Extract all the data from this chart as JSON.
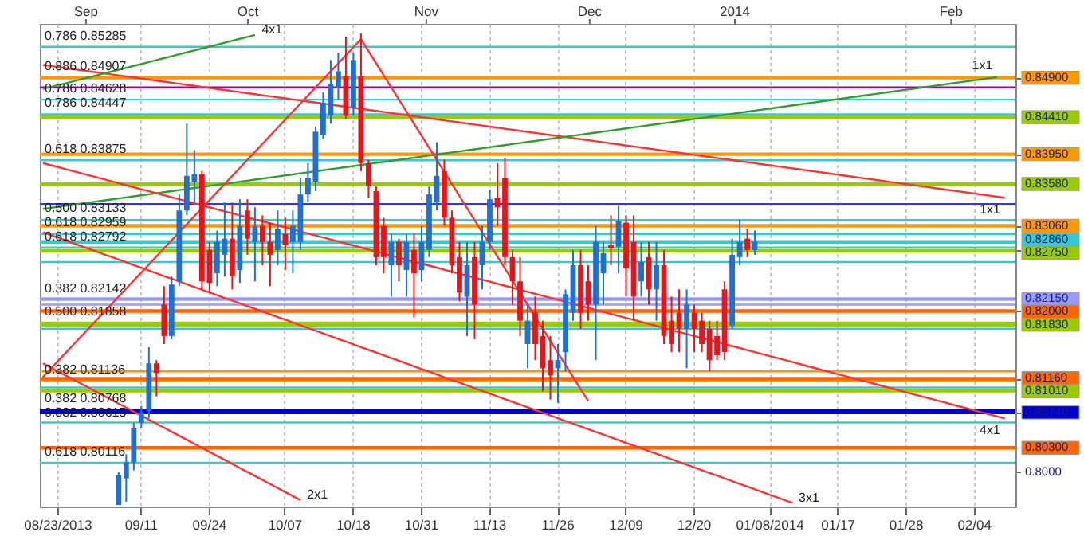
{
  "chart_data": {
    "type": "candlestick",
    "categories": [
      null,
      null,
      "08/23/2013",
      null,
      null,
      null,
      null,
      null,
      null,
      null,
      null,
      null,
      null,
      "09/11",
      null,
      null,
      null,
      null,
      null,
      null,
      null,
      null,
      "09/24",
      null,
      null,
      null,
      null,
      null,
      null,
      null,
      null,
      null,
      "10/07",
      null,
      null,
      null,
      null,
      null,
      null,
      null,
      null,
      "10/18",
      null,
      null,
      null,
      null,
      null,
      null,
      null,
      null,
      "10/31",
      null,
      null,
      null,
      null,
      null,
      null,
      null,
      null,
      "11/13",
      null,
      null,
      null,
      null,
      null,
      null,
      null,
      null,
      "11/26",
      null,
      null,
      null,
      null,
      null,
      null,
      null,
      null,
      "12/09",
      null,
      null,
      null,
      null,
      null,
      null,
      null,
      null,
      "12/20",
      null,
      null,
      null,
      null,
      null,
      null,
      null,
      null,
      null,
      "01/08/2014",
      null,
      null,
      null,
      null,
      null,
      null,
      null,
      null,
      "01/17",
      null,
      null,
      null,
      null,
      null,
      null,
      null,
      null,
      "01/28",
      null,
      null,
      null,
      null,
      null,
      null,
      null,
      null,
      "02/04",
      null,
      null,
      null,
      null,
      null
    ],
    "ohlc": [
      null,
      null,
      null,
      null,
      null,
      null,
      null,
      null,
      null,
      null,
      [
        0.7959,
        0.8,
        0.7959,
        0.7996
      ],
      [
        0.7992,
        0.8022,
        0.7963,
        0.8012
      ],
      [
        0.8012,
        0.8061,
        0.8002,
        0.8055
      ],
      [
        0.8061,
        0.8082,
        0.8055,
        0.8074
      ],
      [
        0.8076,
        0.8155,
        0.8067,
        0.8135
      ],
      [
        0.8135,
        0.8139,
        0.8094,
        0.8123
      ],
      [
        0.8208,
        0.8231,
        0.8159,
        0.8169
      ],
      [
        0.8169,
        0.8243,
        0.8165,
        0.8233
      ],
      [
        0.8237,
        0.8345,
        0.8231,
        0.8325
      ],
      [
        0.8325,
        0.8433,
        0.8319,
        0.8368
      ],
      [
        0.8361,
        0.84,
        0.8335,
        0.837
      ],
      [
        0.837,
        0.8374,
        0.8227,
        0.8237
      ],
      [
        0.8276,
        0.8286,
        0.8223,
        0.8235
      ],
      [
        0.8247,
        0.83,
        0.8231,
        0.8286
      ],
      [
        0.827,
        0.8335,
        0.8243,
        0.829
      ],
      [
        0.829,
        0.8335,
        0.8227,
        0.8243
      ],
      [
        0.8251,
        0.8339,
        0.8235,
        0.8306
      ],
      [
        0.8325,
        0.8339,
        0.827,
        0.829
      ],
      [
        0.8286,
        0.8329,
        0.8237,
        0.8306
      ],
      [
        0.8306,
        0.8319,
        0.8257,
        0.8286
      ],
      [
        0.8286,
        0.831,
        0.8231,
        0.827
      ],
      [
        0.8276,
        0.8325,
        0.8257,
        0.8302
      ],
      [
        0.8296,
        0.8316,
        0.8251,
        0.8282
      ],
      [
        0.8286,
        0.8325,
        0.8247,
        0.8306
      ],
      [
        0.8286,
        0.8365,
        0.8276,
        0.8345
      ],
      [
        0.8345,
        0.8384,
        0.8335,
        0.8365
      ],
      [
        0.8361,
        0.8429,
        0.8349,
        0.8423
      ],
      [
        0.8419,
        0.8472,
        0.8414,
        0.8459
      ],
      [
        0.8443,
        0.8512,
        0.8433,
        0.8482
      ],
      [
        0.8478,
        0.8521,
        0.8463,
        0.8498
      ],
      [
        0.8492,
        0.8541,
        0.8439,
        0.8443
      ],
      [
        0.8453,
        0.8521,
        0.8443,
        0.8512
      ],
      [
        0.8492,
        0.8545,
        0.8374,
        0.8384
      ],
      [
        0.8384,
        0.8388,
        0.8341,
        0.8355
      ],
      [
        0.8349,
        0.8355,
        0.8257,
        0.8267
      ],
      [
        0.8306,
        0.8316,
        0.8247,
        0.8267
      ],
      [
        0.8257,
        0.8296,
        0.8218,
        0.8286
      ],
      [
        0.8286,
        0.829,
        0.8237,
        0.8257
      ],
      [
        0.8251,
        0.8296,
        0.8218,
        0.8286
      ],
      [
        0.8276,
        0.8296,
        0.8192,
        0.8247
      ],
      [
        0.8251,
        0.8306,
        0.8237,
        0.8286
      ],
      [
        0.8276,
        0.8355,
        0.8267,
        0.8345
      ],
      [
        0.8335,
        0.841,
        0.8325,
        0.8368
      ],
      [
        0.8374,
        0.8388,
        0.8306,
        0.8316
      ],
      [
        0.8316,
        0.8325,
        0.8247,
        0.8257
      ],
      [
        0.8267,
        0.8286,
        0.8212,
        0.8223
      ],
      [
        0.8218,
        0.8286,
        0.8169,
        0.8257
      ],
      [
        0.8267,
        0.8286,
        0.8165,
        0.8208
      ],
      [
        0.8257,
        0.8306,
        0.8227,
        0.8286
      ],
      [
        0.8286,
        0.8351,
        0.8276,
        0.8339
      ],
      [
        0.8341,
        0.8384,
        0.8306,
        0.8329
      ],
      [
        0.8365,
        0.839,
        0.8257,
        0.8267
      ],
      [
        0.8267,
        0.8276,
        0.8208,
        0.8237
      ],
      [
        0.8237,
        0.8267,
        0.8169,
        0.8188
      ],
      [
        0.8159,
        0.8208,
        0.8129,
        0.8188
      ],
      [
        0.8198,
        0.8218,
        0.8139,
        0.8159
      ],
      [
        0.8169,
        0.8188,
        0.81,
        0.8129
      ],
      [
        0.8139,
        0.8169,
        0.809,
        0.812
      ],
      [
        0.8129,
        0.8159,
        0.8086,
        0.8139
      ],
      [
        0.8149,
        0.8227,
        0.8125,
        0.8221
      ],
      [
        0.8198,
        0.8276,
        0.8188,
        0.8257
      ],
      [
        0.8257,
        0.8276,
        0.8178,
        0.8198
      ],
      [
        0.8237,
        0.8257,
        0.8188,
        0.8208
      ],
      [
        0.8208,
        0.8306,
        0.8139,
        0.8286
      ],
      [
        0.8247,
        0.8286,
        0.8208,
        0.8272
      ],
      [
        0.8282,
        0.8319,
        0.8257,
        0.8278
      ],
      [
        0.828,
        0.8331,
        0.8247,
        0.8312
      ],
      [
        0.831,
        0.8319,
        0.8218,
        0.8253
      ],
      [
        0.8286,
        0.8319,
        0.8188,
        0.8218
      ],
      [
        0.8237,
        0.8286,
        0.8218,
        0.8261
      ],
      [
        0.8267,
        0.8286,
        0.8208,
        0.8227
      ],
      [
        0.8227,
        0.8286,
        0.8188,
        0.8257
      ],
      [
        0.8257,
        0.8276,
        0.8159,
        0.8169
      ],
      [
        0.8188,
        0.8218,
        0.8149,
        0.8159
      ],
      [
        0.8198,
        0.8227,
        0.8149,
        0.8178
      ],
      [
        0.8178,
        0.8227,
        0.8129,
        0.8208
      ],
      [
        0.8198,
        0.8208,
        0.8149,
        0.8178
      ],
      [
        0.8188,
        0.8198,
        0.8149,
        0.8159
      ],
      [
        0.8178,
        0.8188,
        0.8125,
        0.8139
      ],
      [
        0.8169,
        0.8188,
        0.8139,
        0.8145
      ],
      [
        0.8227,
        0.8237,
        0.8139,
        0.8149
      ],
      [
        0.8182,
        0.829,
        0.8178,
        0.827
      ],
      [
        0.8267,
        0.8314,
        0.8257,
        0.8286
      ],
      [
        0.829,
        0.8302,
        0.8267,
        0.8276
      ],
      [
        0.8276,
        0.83,
        0.827,
        0.8286
      ],
      null,
      null,
      null,
      null,
      null,
      null,
      null,
      null,
      null,
      null,
      null,
      null,
      null,
      null,
      null,
      null,
      null,
      null,
      null,
      null,
      null,
      null,
      null,
      null,
      null,
      null,
      null,
      null,
      null,
      null,
      null,
      null,
      null,
      null
    ],
    "colors": [
      null,
      null,
      null,
      null,
      null,
      null,
      null,
      null,
      null,
      null,
      "#1f6fd6",
      "#1f6fd6",
      "#1f6fd6",
      "#1f6fd6",
      "#1f6fd6",
      "#e8141c",
      "#e8141c",
      "#1f6fd6",
      "#1f6fd6",
      "#1f6fd6",
      "#1f6fd6",
      "#e8141c",
      "#e8141c",
      "#1f6fd6",
      "#1f6fd6",
      "#e8141c",
      "#1f6fd6",
      "#e8141c",
      "#1f6fd6",
      "#e8141c",
      "#e8141c",
      "#1f6fd6",
      "#e8141c",
      "#1f6fd6",
      "#1f6fd6",
      "#1f6fd6",
      "#1f6fd6",
      "#1f6fd6",
      "#1f6fd6",
      "#1f6fd6",
      "#e8141c",
      "#1f6fd6",
      "#e8141c",
      "#e8141c",
      "#e8141c",
      "#e8141c",
      "#1f6fd6",
      "#e8141c",
      "#1f6fd6",
      "#e8141c",
      "#1f6fd6",
      "#1f6fd6",
      "#1f6fd6",
      "#e8141c",
      "#e8141c",
      "#e8141c",
      "#1f6fd6",
      "#e8141c",
      "#1f6fd6",
      "#1f6fd6",
      "#e8141c",
      "#e8141c",
      "#e8141c",
      "#e8141c",
      "#1f6fd6",
      "#e8141c",
      "#e8141c",
      "#e8141c",
      "#1f6fd6",
      "#1f6fd6",
      "#1f6fd6",
      "#e8141c",
      "#e8141c",
      "#1f6fd6",
      "#1f6fd6",
      "#e8141c",
      "#1f6fd6",
      "#e8141c",
      "#e8141c",
      "#1f6fd6",
      "#e8141c",
      "#1f6fd6",
      "#e8141c",
      "#e8141c",
      "#e8141c",
      "#1f6fd6",
      "#e8141c",
      "#e8141c",
      "#e8141c",
      "#e8141c",
      "#e8141c",
      "#1f6fd6",
      "#1f6fd6",
      "#e8141c",
      "#1f6fd6",
      null,
      null,
      null,
      null,
      null,
      null,
      null,
      null,
      null,
      null,
      null,
      null,
      null,
      null,
      null,
      null,
      null,
      null,
      null,
      null,
      null,
      null,
      null,
      null,
      null,
      null,
      null,
      null,
      null,
      null,
      null,
      null,
      null,
      null
    ],
    "series": [
      {
        "type": "line",
        "name": "1x1",
        "color": "#ff3333",
        "values": [
          0.8506,
          0.85047,
          0.85034,
          0.85021,
          0.85008,
          0.84995,
          0.84982,
          0.84969,
          0.84956,
          0.84943,
          0.8493,
          0.84917,
          0.84904,
          0.84891,
          0.84878,
          0.84865,
          0.84852,
          0.84839,
          0.84826,
          0.84813,
          0.848,
          0.84787,
          0.84774,
          0.84761,
          0.84748,
          0.84735,
          0.84722,
          0.84709,
          0.84696,
          0.84683,
          0.8467,
          0.84657,
          0.84644,
          0.84631,
          0.84618,
          0.84605,
          0.84592,
          0.84579,
          0.84566,
          0.84553,
          0.8454,
          0.84527,
          0.84514,
          0.84501,
          0.84488,
          0.84475,
          0.84462,
          0.84449,
          0.84436,
          0.84423,
          0.8441,
          0.84397,
          0.84384,
          0.84371,
          0.84358,
          0.84345,
          0.84332,
          0.84319,
          0.84306,
          0.84293,
          0.8428,
          0.84267,
          0.84254,
          0.84241,
          0.84228,
          0.84215,
          0.84202,
          0.84189,
          0.84176,
          0.84163,
          0.8415,
          0.84137,
          0.84124,
          0.84111,
          0.84098,
          0.84085,
          0.84072,
          0.84059,
          0.84046,
          0.84033,
          0.8402,
          0.84007,
          0.83994,
          0.83981,
          0.83968,
          0.83955,
          0.83942,
          0.83929,
          0.83916,
          0.83903,
          0.8389,
          0.83877,
          0.83864,
          0.83851,
          0.83838,
          0.83825,
          0.83812,
          0.83799,
          0.83786,
          0.83773,
          0.8376,
          0.83747,
          0.83734,
          0.83721,
          0.83708,
          0.83695,
          0.83682,
          0.83669,
          0.83656,
          0.83643,
          0.8363,
          0.83617,
          0.83604,
          0.83591,
          0.83578,
          0.83565,
          0.83552,
          0.83539,
          0.83526,
          0.83513,
          0.835,
          0.83487,
          0.83474,
          0.83461,
          0.83448,
          0.83435,
          0.83422,
          0.83409,
          null
        ]
      },
      {
        "type": "line",
        "name": "4x1",
        "color": "#2e9e2e",
        "values": [
          0.8476,
          0.84784,
          0.84808,
          0.84832,
          0.84856,
          0.8488,
          0.84904,
          0.84928,
          0.84952,
          0.84976,
          0.85,
          0.85024,
          0.85048,
          0.85072,
          0.85096,
          0.8512,
          0.85144,
          0.85168,
          0.85192,
          0.85216,
          0.8524,
          0.85264,
          0.85288,
          0.85312,
          0.85336,
          0.8536,
          0.85384,
          0.85408,
          0.85432,
          null,
          null,
          null,
          null,
          null,
          null,
          null,
          null,
          null,
          null,
          null,
          null,
          null,
          null,
          null,
          null,
          null,
          null,
          null,
          null,
          null,
          null,
          null,
          null,
          null,
          null,
          null,
          null,
          null,
          null,
          null,
          null,
          null,
          null,
          null,
          null,
          null,
          null,
          null,
          null,
          null,
          null,
          null,
          null,
          null,
          null,
          null,
          null,
          null,
          null,
          null,
          null,
          null,
          null,
          null,
          null,
          null,
          null,
          null,
          null,
          null,
          null,
          null,
          null,
          null,
          null,
          null,
          null,
          null,
          null,
          null,
          null,
          null,
          null,
          null,
          null,
          null,
          null,
          null,
          null,
          null,
          null,
          null,
          null,
          null,
          null,
          null,
          null,
          null,
          null,
          null,
          null,
          null,
          null,
          null,
          null,
          null,
          null,
          null,
          null
        ]
      },
      {
        "type": "line",
        "name": "1x1",
        "color": "#2e9e2e",
        "values": [
          0.8327,
          0.83283,
          0.83296,
          0.83309,
          0.83322,
          0.83335,
          0.83348,
          0.83361,
          0.83374,
          0.83387,
          0.834,
          0.83413,
          0.83426,
          0.83439,
          0.83452,
          0.83465,
          0.83478,
          0.83491,
          0.83504,
          0.83517,
          0.8353,
          0.83543,
          0.83556,
          0.83569,
          0.83582,
          0.83595,
          0.83608,
          0.83621,
          0.83634,
          0.83647,
          0.8366,
          0.83673,
          0.83686,
          0.83699,
          0.83712,
          0.83725,
          0.83738,
          0.83751,
          0.83764,
          0.83777,
          0.8379,
          0.83803,
          0.83816,
          0.83829,
          0.83842,
          0.83855,
          0.83868,
          0.83881,
          0.83894,
          0.83907,
          0.8392,
          0.83933,
          0.83946,
          0.83959,
          0.83972,
          0.83985,
          0.83998,
          0.84011,
          0.84024,
          0.84037,
          0.8405,
          0.84063,
          0.84076,
          0.84089,
          0.84102,
          0.84115,
          0.84128,
          0.84141,
          0.84154,
          0.84167,
          0.8418,
          0.84193,
          0.84206,
          0.84219,
          0.84232,
          0.84245,
          0.84258,
          0.84271,
          0.84284,
          0.84297,
          0.8431,
          0.84323,
          0.84336,
          0.84349,
          0.84362,
          0.84375,
          0.84388,
          0.84401,
          0.84414,
          0.84427,
          0.8444,
          0.84453,
          0.84466,
          0.84479,
          0.84492,
          0.84505,
          0.84518,
          0.84531,
          0.84544,
          0.84557,
          0.8457,
          0.84583,
          0.84596,
          0.84609,
          0.84622,
          0.84635,
          0.84648,
          0.84661,
          0.84674,
          0.84687,
          0.847,
          0.84713,
          0.84726,
          0.84739,
          0.84752,
          0.84765,
          0.84778,
          0.84791,
          0.84804,
          0.84817,
          0.8483,
          0.84843,
          0.84856,
          0.84869,
          0.84882,
          0.84895,
          0.84908,
          null,
          null
        ]
      },
      {
        "type": "line",
        "color": "#ff3333",
        "values": [
          0.8118,
          0.8128,
          0.8138,
          0.8148,
          0.8158,
          0.8168,
          0.8178,
          0.8188,
          0.8198,
          0.8208,
          0.8218,
          0.8228,
          0.8238,
          0.8248,
          0.8258,
          0.8268,
          0.8278,
          0.8288,
          0.8298,
          0.8308,
          0.8318,
          0.8328,
          0.8338,
          0.8348,
          0.8358,
          0.8368,
          0.8378,
          0.8388,
          0.8398,
          0.8408,
          0.8418,
          0.8428,
          0.8438,
          0.8448,
          0.8458,
          0.8468,
          0.8478,
          0.8488,
          0.8498,
          0.8508,
          0.8518,
          0.8528,
          0.8538,
          0.8523,
          0.8508,
          0.8493,
          0.8478,
          0.8463,
          0.8448,
          0.8433,
          0.8418,
          0.8403,
          0.8388,
          0.8373,
          0.8358,
          0.8343,
          0.8328,
          0.8313,
          0.8298,
          0.8283,
          0.8268,
          0.8253,
          0.8238,
          0.8223,
          0.8208,
          0.8193,
          0.8178,
          0.8163,
          0.8148,
          0.8133,
          0.8118,
          0.8103,
          0.8088,
          null,
          null,
          null,
          null,
          null,
          null,
          null,
          null,
          null,
          null,
          null,
          null,
          null,
          null,
          null,
          null,
          null,
          null,
          null,
          null,
          null,
          null,
          null,
          null,
          null,
          null,
          null,
          null,
          null,
          null,
          null,
          null,
          null,
          null,
          null,
          null,
          null,
          null,
          null,
          null,
          null,
          null,
          null,
          null,
          null,
          null,
          null,
          null,
          null,
          null,
          null,
          null,
          null,
          null,
          null,
          null
        ]
      },
      {
        "type": "line",
        "name": "4x1",
        "color": "#ff3333",
        "values": [
          0.8384,
          0.83815,
          0.8379,
          0.83765,
          0.8374,
          0.83715,
          0.8369,
          0.83665,
          0.8364,
          0.83615,
          0.8359,
          0.83565,
          0.8354,
          0.83515,
          0.8349,
          0.83465,
          0.8344,
          0.83415,
          0.8339,
          0.83365,
          0.8334,
          0.83315,
          0.8329,
          0.83265,
          0.8324,
          0.83215,
          0.8319,
          0.83165,
          0.8314,
          0.83115,
          0.8309,
          0.83065,
          0.8304,
          0.83015,
          0.8299,
          0.82965,
          0.8294,
          0.82915,
          0.8289,
          0.82865,
          0.8284,
          0.82815,
          0.8279,
          0.82765,
          0.8274,
          0.82715,
          0.8269,
          0.82665,
          0.8264,
          0.82615,
          0.8259,
          0.82565,
          0.8254,
          0.82515,
          0.8249,
          0.82465,
          0.8244,
          0.82415,
          0.8239,
          0.82365,
          0.8234,
          0.82315,
          0.8229,
          0.82265,
          0.8224,
          0.82215,
          0.8219,
          0.82165,
          0.8214,
          0.82115,
          0.8209,
          0.82065,
          0.8204,
          0.82015,
          0.8199,
          0.81965,
          0.8194,
          0.81915,
          0.8189,
          0.81865,
          0.8184,
          0.81815,
          0.8179,
          0.81765,
          0.8174,
          0.81715,
          0.8169,
          0.81665,
          0.8164,
          0.81615,
          0.8159,
          0.81565,
          0.8154,
          0.81515,
          0.8149,
          0.81465,
          0.8144,
          0.81415,
          0.8139,
          0.81365,
          0.8134,
          0.81315,
          0.8129,
          0.81265,
          0.8124,
          0.81215,
          0.8119,
          0.81165,
          0.8114,
          0.81115,
          0.8109,
          0.81065,
          0.8104,
          0.81015,
          0.8099,
          0.80965,
          0.8094,
          0.80915,
          0.8089,
          0.80865,
          0.8084,
          0.80815,
          0.8079,
          0.80765,
          0.8074,
          0.80715,
          0.8069,
          0.80665,
          null
        ]
      },
      {
        "type": "line",
        "name": "3x1",
        "color": "#ff3333",
        "values": [
          0.8298,
          0.82946,
          0.82912,
          0.82878,
          0.82844,
          0.8281,
          0.82776,
          0.82742,
          0.82708,
          0.82674,
          0.8264,
          0.82606,
          0.82572,
          0.82538,
          0.82504,
          0.8247,
          0.82436,
          0.82402,
          0.82368,
          0.82334,
          0.823,
          0.82266,
          0.82232,
          0.82198,
          0.82164,
          0.8213,
          0.82096,
          0.82062,
          0.82028,
          0.81994,
          0.8196,
          0.81926,
          0.81892,
          0.81858,
          0.81824,
          0.8179,
          0.81756,
          0.81722,
          0.81688,
          0.81654,
          0.8162,
          0.81586,
          0.81552,
          0.81518,
          0.81484,
          0.8145,
          0.81416,
          0.81382,
          0.81348,
          0.81314,
          0.8128,
          0.81246,
          0.81212,
          0.81178,
          0.81144,
          0.8111,
          0.81076,
          0.81042,
          0.81008,
          0.80974,
          0.8094,
          0.80906,
          0.80872,
          0.80838,
          0.80804,
          0.8077,
          0.80736,
          0.80702,
          0.80668,
          0.80634,
          0.806,
          0.80566,
          0.80532,
          0.80498,
          0.80464,
          0.8043,
          0.80396,
          0.80362,
          0.80328,
          0.80294,
          0.8026,
          0.80226,
          0.80192,
          0.80158,
          0.80124,
          0.8009,
          0.80056,
          0.80022,
          0.79988,
          0.79954,
          0.7992,
          0.79886,
          0.79852,
          0.79818,
          0.79784,
          0.7975,
          0.79716,
          0.79682,
          0.79648,
          0.79614,
          null,
          null,
          null,
          null,
          null,
          null,
          null,
          null,
          null,
          null,
          null,
          null,
          null,
          null,
          null,
          null,
          null,
          null,
          null,
          null,
          null,
          null,
          null,
          null,
          null,
          null,
          null,
          null,
          null
        ]
      },
      {
        "type": "line",
        "name": "2x1",
        "color": "#ff3333",
        "values": [
          0.8135,
          0.813,
          0.8125,
          0.812,
          0.8115,
          0.811,
          0.8105,
          0.81,
          0.8095,
          0.809,
          0.8085,
          0.808,
          0.8075,
          0.807,
          0.8065,
          0.806,
          0.8055,
          0.805,
          0.8045,
          0.804,
          0.8035,
          0.803,
          0.8025,
          0.802,
          0.8015,
          0.801,
          0.8005,
          0.8,
          0.7995,
          0.799,
          0.7985,
          0.798,
          0.7975,
          0.797,
          0.7965,
          null,
          null,
          null,
          null,
          null,
          null,
          null,
          null,
          null,
          null,
          null,
          null,
          null,
          null,
          null,
          null,
          null,
          null,
          null,
          null,
          null,
          null,
          null,
          null,
          null,
          null,
          null,
          null,
          null,
          null,
          null,
          null,
          null,
          null,
          null,
          null,
          null,
          null,
          null,
          null,
          null,
          null,
          null,
          null,
          null,
          null,
          null,
          null,
          null,
          null,
          null,
          null,
          null,
          null,
          null,
          null,
          null,
          null,
          null,
          null,
          null,
          null,
          null,
          null,
          null,
          null,
          null,
          null,
          null,
          null,
          null,
          null,
          null,
          null,
          null,
          null,
          null,
          null,
          null,
          null,
          null,
          null,
          null,
          null,
          null,
          null,
          null,
          null,
          null,
          null,
          null,
          null,
          null,
          null
        ]
      }
    ],
    "ref_lines": [
      {
        "axis": "y",
        "value": 0.85285,
        "label": "0.786 0.85285",
        "color": "#33cccc"
      },
      {
        "axis": "y",
        "value": 0.84907,
        "label": "0.886 0.84907",
        "color": "#33cccc"
      },
      {
        "axis": "y",
        "value": 0.849,
        "color": "#ff9900"
      },
      {
        "axis": "y",
        "value": 0.8478,
        "color": "#990099"
      },
      {
        "axis": "y",
        "value": 0.84628,
        "label": "0.786 0.84628",
        "color": "#33cccc"
      },
      {
        "axis": "y",
        "value": 0.84447,
        "label": "0.786 0.84447",
        "color": "#33cccc"
      },
      {
        "axis": "y",
        "value": 0.8441,
        "color": "#99cc00"
      },
      {
        "axis": "y",
        "value": 0.8395,
        "color": "#ff9900"
      },
      {
        "axis": "y",
        "value": 0.83875,
        "label": "0.618 0.83875",
        "color": "#33cccc"
      },
      {
        "axis": "y",
        "value": 0.8358,
        "color": "#99cc00"
      },
      {
        "axis": "y",
        "value": 0.8333,
        "color": "#3333ff"
      },
      {
        "axis": "y",
        "value": 0.83133,
        "label": "0.500 0.83133",
        "color": "#33cccc"
      },
      {
        "axis": "y",
        "value": 0.8306,
        "color": "#ff9900"
      },
      {
        "axis": "y",
        "value": 0.82959,
        "label": "0.618 0.82959",
        "color": "#33cccc"
      },
      {
        "axis": "y",
        "value": 0.8286,
        "color": "#33cccc"
      },
      {
        "axis": "y",
        "value": 0.82792,
        "label": "0.618 0.82792",
        "color": "#33cccc"
      },
      {
        "axis": "y",
        "value": 0.8275,
        "color": "#99cc00"
      },
      {
        "axis": "y",
        "value": 0.8261,
        "color": "#33cccc"
      },
      {
        "axis": "y",
        "value": 0.82142,
        "label": "0.382 0.82142",
        "color": "#9999ff"
      },
      {
        "axis": "y",
        "value": 0.8215,
        "color": "#9999ff"
      },
      {
        "axis": "y",
        "value": 0.8208,
        "color": "#9999ff"
      },
      {
        "axis": "y",
        "value": 0.82,
        "color": "#ff6600"
      },
      {
        "axis": "y",
        "value": 0.81858,
        "label": "0.500 0.81858",
        "color": "#99cc00"
      },
      {
        "axis": "y",
        "value": 0.8183,
        "color": "#99cc00"
      },
      {
        "axis": "y",
        "value": 0.8178,
        "color": "#33cccc"
      },
      {
        "axis": "y",
        "value": 0.8125,
        "color": "#ff9900"
      },
      {
        "axis": "y",
        "value": 0.81136,
        "label": "0.382 0.81136",
        "color": "#ff9900"
      },
      {
        "axis": "y",
        "value": 0.8116,
        "color": "#ff6600"
      },
      {
        "axis": "y",
        "value": 0.8105,
        "color": "#33cccc"
      },
      {
        "axis": "y",
        "value": 0.8101,
        "color": "#99cc00"
      },
      {
        "axis": "y",
        "value": 0.80768,
        "label": "0.382 0.80768",
        "color": "#0000cc"
      },
      {
        "axis": "y",
        "value": 0.8074,
        "color": "#0000cc"
      },
      {
        "axis": "y",
        "value": 0.80615,
        "label": "0.382 0.80615",
        "color": "#33cccc"
      },
      {
        "axis": "y",
        "value": 0.803,
        "color": "#ff6600"
      },
      {
        "axis": "y",
        "value": 0.80116,
        "label": "0.618 0.80116",
        "color": "#33cccc"
      }
    ],
    "annotations": [
      "Sep",
      "Oct",
      "Nov",
      "Dec",
      "2014",
      "Feb"
    ],
    "ylim": [
      0.7957,
      0.8557
    ],
    "yticks": [
      {
        "value": 0.849,
        "label": "0.84900"
      },
      {
        "value": 0.8441,
        "label": "0.84410"
      },
      {
        "value": 0.8395,
        "label": "0.83950"
      },
      {
        "value": 0.8358,
        "label": "0.83580"
      },
      {
        "value": 0.8306,
        "label": "0.83060"
      },
      {
        "value": 0.8286,
        "label": "0.82860"
      },
      {
        "value": 0.8275,
        "label": "0.82750"
      },
      {
        "value": 0.8215,
        "label": "0.82150"
      },
      {
        "value": 0.82,
        "label": "0.82000"
      },
      {
        "value": 0.8183,
        "label": "0.81830"
      },
      {
        "value": 0.8116,
        "label": "0.81160"
      },
      {
        "value": 0.8101,
        "label": "0.81010"
      },
      {
        "value": 0.8074,
        "label": "0.80740"
      },
      {
        "value": 0.803,
        "label": "0.80300"
      },
      {
        "value": 0.8,
        "label": "0.8000"
      }
    ],
    "grid": "x"
  }
}
